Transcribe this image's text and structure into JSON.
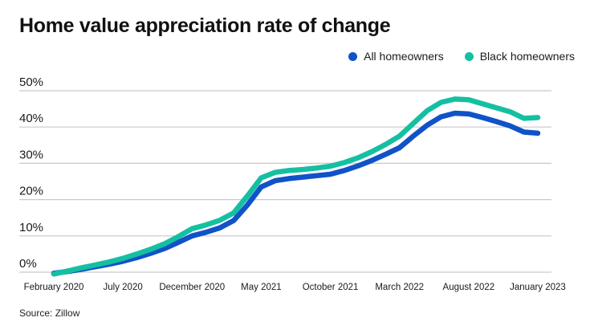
{
  "header": {
    "title": "Home value appreciation rate of change"
  },
  "legend": {
    "items": [
      {
        "label": "All homeowners",
        "color": "#1052C8"
      },
      {
        "label": "Black homeowners",
        "color": "#15BFA2"
      }
    ]
  },
  "source": {
    "text": "Source: Zillow"
  },
  "colors": {
    "grid": "#c9c9c9",
    "axis_text": "#1a1a1a",
    "background": "#ffffff"
  },
  "chart_data": {
    "type": "line",
    "title": "Home value appreciation rate of change",
    "xlabel": "",
    "ylabel": "",
    "ylim": [
      0,
      50
    ],
    "y_ticks": [
      "0%",
      "10%",
      "20%",
      "30%",
      "40%",
      "50%"
    ],
    "grid": "horizontal",
    "legend_position": "top-right",
    "x_unit": "month",
    "x_range": [
      "February 2020",
      "January 2023"
    ],
    "x_ticks": [
      {
        "index": 0,
        "label": "February 2020"
      },
      {
        "index": 5,
        "label": "July 2020"
      },
      {
        "index": 10,
        "label": "December 2020"
      },
      {
        "index": 15,
        "label": "May 2021"
      },
      {
        "index": 20,
        "label": "October 2021"
      },
      {
        "index": 25,
        "label": "March 2022"
      },
      {
        "index": 30,
        "label": "August 2022"
      },
      {
        "index": 35,
        "label": "January 2023"
      }
    ],
    "series": [
      {
        "name": "All homeowners",
        "color": "#1052C8",
        "values": [
          -0.3,
          0.2,
          0.8,
          1.5,
          2.2,
          3.0,
          4.0,
          5.2,
          6.5,
          8.2,
          10.0,
          11.0,
          12.2,
          14.2,
          18.5,
          23.5,
          25.2,
          25.8,
          26.2,
          26.6,
          27.0,
          28.0,
          29.3,
          30.8,
          32.5,
          34.3,
          37.5,
          40.5,
          42.8,
          43.8,
          43.6,
          42.6,
          41.5,
          40.3,
          38.6,
          38.3
        ]
      },
      {
        "name": "Black homeowners",
        "color": "#15BFA2",
        "values": [
          -0.5,
          0.3,
          1.2,
          2.0,
          2.8,
          3.8,
          5.0,
          6.3,
          7.8,
          9.8,
          12.0,
          13.0,
          14.3,
          16.3,
          21.0,
          26.0,
          27.5,
          28.0,
          28.3,
          28.7,
          29.2,
          30.2,
          31.5,
          33.2,
          35.2,
          37.5,
          41.0,
          44.5,
          46.8,
          47.7,
          47.5,
          46.4,
          45.3,
          44.2,
          42.4,
          42.6
        ]
      }
    ]
  }
}
